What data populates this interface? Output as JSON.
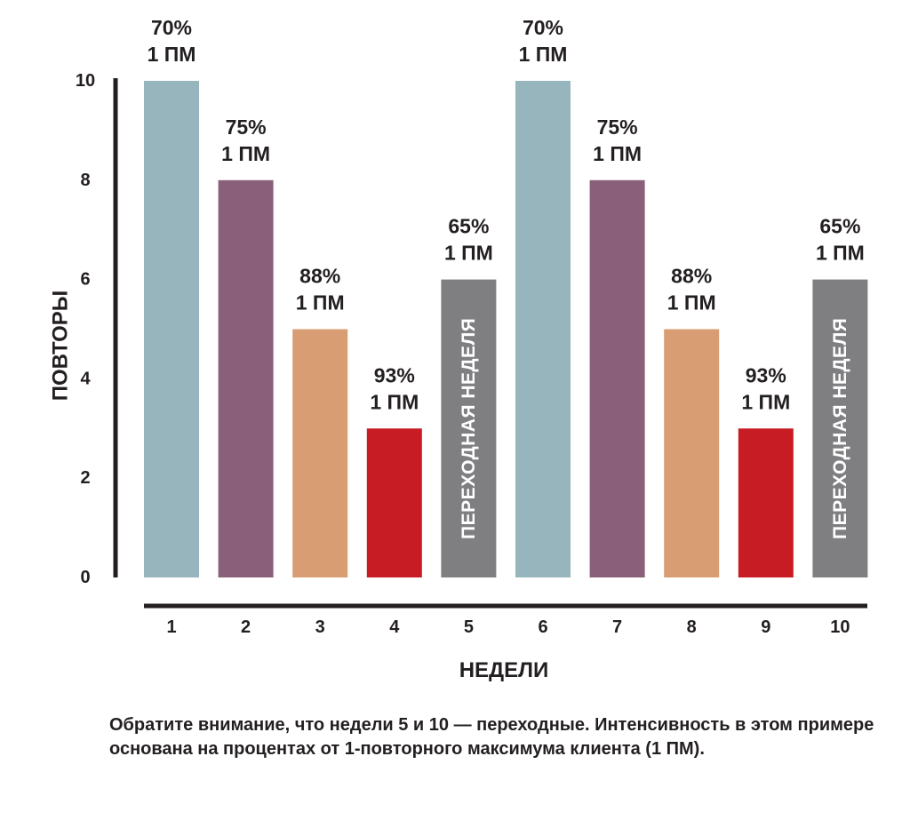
{
  "chart_data": {
    "type": "bar",
    "xlabel": "НЕДЕЛИ",
    "ylabel": "ПОВТОРЫ",
    "ylim": [
      0,
      10
    ],
    "yticks": [
      "0",
      "2",
      "4",
      "6",
      "8",
      "10"
    ],
    "ytick_values": [
      0,
      2,
      4,
      6,
      8,
      10
    ],
    "categories": [
      "1",
      "2",
      "3",
      "4",
      "5",
      "6",
      "7",
      "8",
      "9",
      "10"
    ],
    "values": [
      10,
      8,
      5,
      3,
      6,
      10,
      8,
      5,
      3,
      6
    ],
    "colors": [
      "#97b5bd",
      "#8a5f7a",
      "#d99d74",
      "#c81c24",
      "#7f7f82",
      "#97b5bd",
      "#8a5f7a",
      "#d99d74",
      "#c81c24",
      "#7f7f82"
    ],
    "labels": [
      [
        "70%",
        "1 ПМ"
      ],
      [
        "75%",
        "1 ПМ"
      ],
      [
        "88%",
        "1 ПМ"
      ],
      [
        "93%",
        "1 ПМ"
      ],
      [
        "65%",
        "1 ПМ"
      ],
      [
        "70%",
        "1 ПМ"
      ],
      [
        "75%",
        "1 ПМ"
      ],
      [
        "88%",
        "1 ПМ"
      ],
      [
        "93%",
        "1 ПМ"
      ],
      [
        "65%",
        "1 ПМ"
      ]
    ],
    "inside_labels": [
      "",
      "",
      "",
      "",
      "ПЕРЕХОДНАЯ НЕДЕЛЯ",
      "",
      "",
      "",
      "",
      "ПЕРЕХОДНАЯ НЕДЕЛЯ"
    ]
  },
  "note": "Обратите внимание, что недели 5 и 10 — переходные. Интенсивность в этом примере основана на процентах от 1-повторного максимума клиента (1 ПМ).",
  "colors": {
    "axis": "#231f20"
  }
}
